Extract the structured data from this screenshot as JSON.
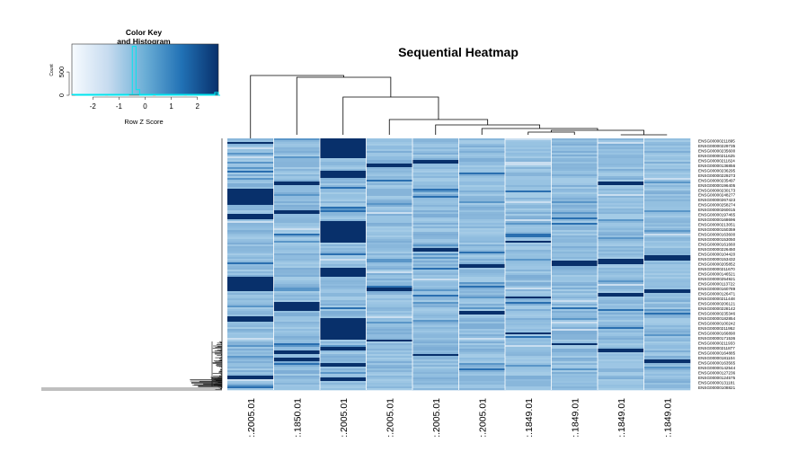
{
  "chart_data": {
    "type": "heatmap",
    "title": "Sequential Heatmap",
    "colorkey": {
      "title_line1": "Color Key",
      "title_line2": "and Histogram",
      "xlabel": "Row Z Score",
      "ylabel": "Count",
      "x_ticks": [
        "-2",
        "-1",
        "0",
        "1",
        "2"
      ],
      "x_tick_values": [
        -2,
        -1,
        0,
        1,
        2
      ],
      "x_range": [
        -2.8,
        2.8
      ],
      "y_ticks": [
        "0",
        "500"
      ],
      "y_tick_values": [
        0,
        500
      ],
      "y_range": [
        0,
        1100
      ],
      "histogram_bins": [
        {
          "x": -2.75,
          "count": 10
        },
        {
          "x": -1.5,
          "count": 5
        },
        {
          "x": -0.6,
          "count": 20
        },
        {
          "x": -0.45,
          "count": 1050
        },
        {
          "x": -0.3,
          "count": 120
        },
        {
          "x": 0.3,
          "count": 10
        },
        {
          "x": 1.5,
          "count": 5
        },
        {
          "x": 2.7,
          "count": 60
        }
      ]
    },
    "palette": [
      "#f7fbff",
      "#08306b"
    ],
    "columns": [
      ":.2005.01",
      ":.1850.01",
      ":.2005.01",
      ":.2005.01",
      ":.2005.01",
      ":.2005.01",
      ":.1849.01",
      ":.1849.01",
      ":.1849.01",
      ":.1849.01"
    ],
    "row_labels": [
      "ENSG00000211895",
      "ENSG00000229735",
      "ENSG00000235600",
      "ENSG00000211625",
      "ENSG00000211824",
      "ENSG00000136856",
      "ENSG00000236295",
      "ENSG00000229273",
      "ENSG00000235497",
      "ENSG00000196405",
      "ENSG00000230173",
      "ENSG00000248277",
      "ENSG00000267423",
      "ENSG00000258274",
      "ENSG00000260015",
      "ENSG00000197465",
      "ENSG00000168696",
      "ENSG00000213051",
      "ENSG00000150359",
      "ENSG00000163600",
      "ENSG00000153050",
      "ENSG00000161660",
      "ENSG00000226450",
      "ENSG00000104420",
      "ENSG00000153432",
      "ENSG00000205852",
      "ENSG00000211670",
      "ENSG00000146521",
      "ENSG00000254921",
      "ENSG00000113722",
      "ENSG00000160789",
      "ENSG00000126471",
      "ENSG00000211448",
      "ENSG00000206121",
      "ENSG00000228142",
      "ENSG00000235346",
      "ENSG00000182854",
      "ENSG00000100242",
      "ENSG00000211952",
      "ENSG00000166890",
      "ENSG00000171536",
      "ENSG00000211933",
      "ENSG00000211877",
      "ENSG00000164885",
      "ENSG00000181104",
      "ENSG00000163565",
      "ENSG00000142544",
      "ENSG00000127236",
      "ENSG00000124575",
      "ENSG00000131181",
      "ENSG00000108821"
    ],
    "row_dendrogram": "ragged"
  }
}
